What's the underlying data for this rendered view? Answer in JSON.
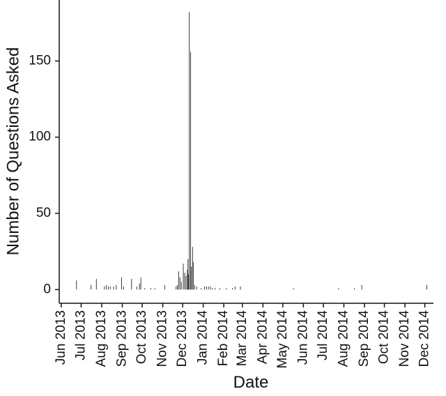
{
  "chart_data": {
    "type": "bar",
    "x_label": "Date",
    "y_label": "Number of Questions Asked",
    "color": "#3a3a3a",
    "x": [
      "2013-06-24",
      "2013-07-16",
      "2013-07-24",
      "2013-08-05",
      "2013-08-08",
      "2013-08-11",
      "2013-08-14",
      "2013-08-19",
      "2013-08-23",
      "2013-08-31",
      "2013-09-03",
      "2013-09-15",
      "2013-09-23",
      "2013-09-27",
      "2013-09-29",
      "2013-10-05",
      "2013-10-14",
      "2013-10-20",
      "2013-11-04",
      "2013-11-21",
      "2013-11-23",
      "2013-11-25",
      "2013-11-27",
      "2013-11-29",
      "2013-12-02",
      "2013-12-04",
      "2013-12-06",
      "2013-12-08",
      "2013-12-09",
      "2013-12-10",
      "2013-12-11",
      "2013-12-13",
      "2013-12-14",
      "2013-12-16",
      "2013-12-17",
      "2013-12-19",
      "2013-12-22",
      "2013-12-29",
      "2014-01-03",
      "2014-01-06",
      "2014-01-09",
      "2014-01-12",
      "2014-01-15",
      "2014-01-19",
      "2014-01-26",
      "2014-02-05",
      "2014-02-14",
      "2014-02-18",
      "2014-02-26",
      "2014-05-17",
      "2014-07-24",
      "2014-08-17",
      "2014-08-28",
      "2014-12-04"
    ],
    "values": [
      6,
      3,
      7,
      2,
      3,
      2,
      2,
      2,
      3,
      8,
      2,
      7,
      2,
      4,
      8,
      1,
      1,
      1,
      3,
      2,
      3,
      12,
      8,
      5,
      17,
      11,
      9,
      13,
      20,
      10,
      182,
      156,
      15,
      28,
      18,
      3,
      2,
      1,
      2,
      2,
      2,
      2,
      1,
      1,
      1,
      1,
      1,
      2,
      2,
      1,
      1,
      1,
      3,
      3
    ],
    "xlim": [
      "2013-05-29",
      "2014-12-14"
    ],
    "xticks": [
      {
        "value": "2013-06-01",
        "label": "Jun 2013"
      },
      {
        "value": "2013-07-01",
        "label": "Jul 2013"
      },
      {
        "value": "2013-08-01",
        "label": "Aug 2013"
      },
      {
        "value": "2013-09-01",
        "label": "Sep 2013"
      },
      {
        "value": "2013-10-01",
        "label": "Oct 2013"
      },
      {
        "value": "2013-11-01",
        "label": "Nov 2013"
      },
      {
        "value": "2013-12-01",
        "label": "Dec 2013"
      },
      {
        "value": "2014-01-01",
        "label": "Jan 2014"
      },
      {
        "value": "2014-02-01",
        "label": "Feb 2014"
      },
      {
        "value": "2014-03-01",
        "label": "Mar 2014"
      },
      {
        "value": "2014-04-01",
        "label": "Apr 2014"
      },
      {
        "value": "2014-05-01",
        "label": "May 2014"
      },
      {
        "value": "2014-06-01",
        "label": "Jun 2014"
      },
      {
        "value": "2014-07-01",
        "label": "Jul 2014"
      },
      {
        "value": "2014-08-01",
        "label": "Aug 2014"
      },
      {
        "value": "2014-09-01",
        "label": "Sep 2014"
      },
      {
        "value": "2014-10-01",
        "label": "Oct 2014"
      },
      {
        "value": "2014-11-01",
        "label": "Nov 2014"
      },
      {
        "value": "2014-12-01",
        "label": "Dec 2014"
      }
    ],
    "ylim": [
      -9,
      190
    ],
    "yticks": [
      0,
      50,
      100,
      150
    ]
  }
}
